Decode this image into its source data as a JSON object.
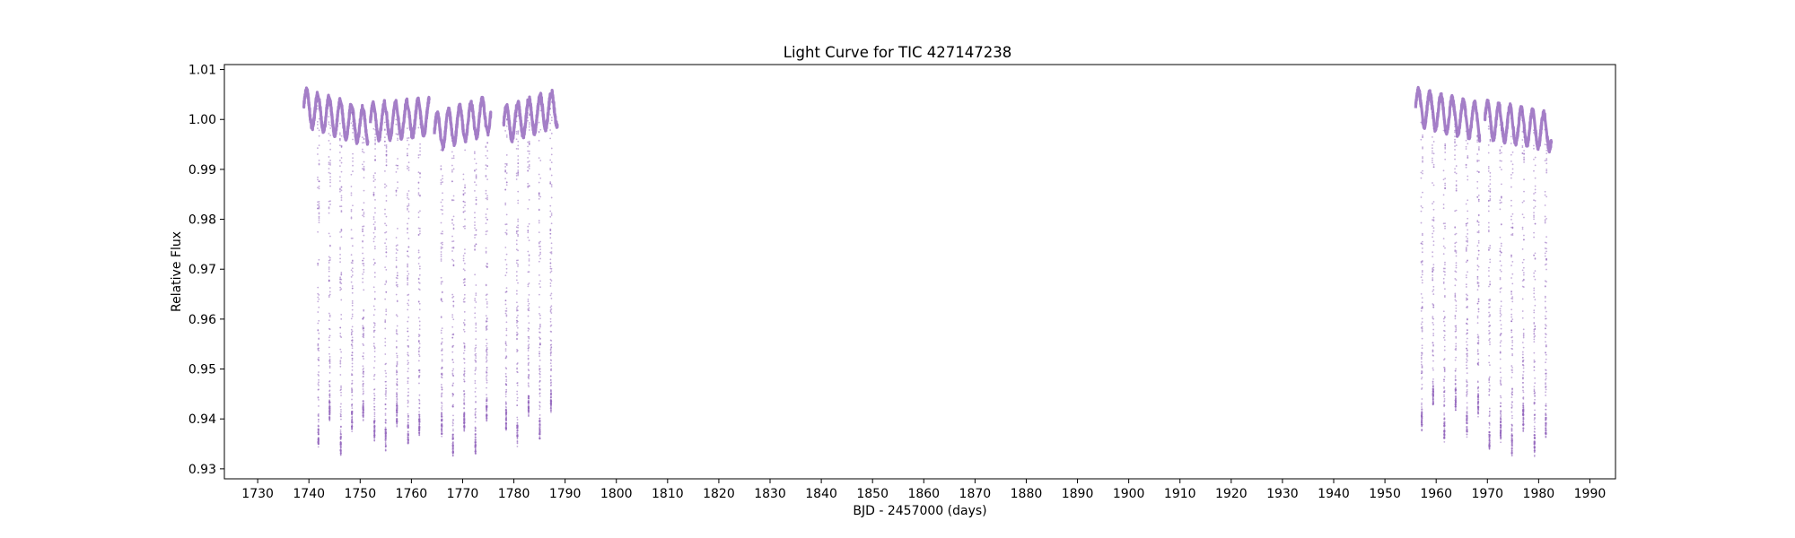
{
  "chart_data": {
    "type": "scatter",
    "title": "Light Curve for TIC 427147238",
    "xlabel": "BJD - 2457000 (days)",
    "ylabel": "Relative Flux",
    "xlim": [
      1723.5,
      1995.0
    ],
    "ylim": [
      0.928,
      1.011
    ],
    "xticks": [
      1730,
      1740,
      1750,
      1760,
      1770,
      1780,
      1790,
      1800,
      1810,
      1820,
      1830,
      1840,
      1850,
      1860,
      1870,
      1880,
      1890,
      1900,
      1910,
      1920,
      1930,
      1940,
      1950,
      1960,
      1970,
      1980,
      1990
    ],
    "xtick_labels": [
      "1730",
      "1740",
      "1750",
      "1760",
      "1770",
      "1780",
      "1790",
      "1800",
      "1810",
      "1820",
      "1830",
      "1840",
      "1850",
      "1860",
      "1870",
      "1880",
      "1890",
      "1900",
      "1910",
      "1920",
      "1930",
      "1940",
      "1950",
      "1960",
      "1970",
      "1980",
      "1990"
    ],
    "yticks": [
      0.93,
      0.94,
      0.95,
      0.96,
      0.97,
      0.98,
      0.99,
      1.0,
      1.01
    ],
    "ytick_labels": [
      "0.93",
      "0.94",
      "0.95",
      "0.96",
      "0.97",
      "0.98",
      "0.99",
      "1.00",
      "1.01"
    ],
    "grid": false,
    "series": [
      {
        "color": "#9467bd",
        "segments": [
          {
            "start": 1739.0,
            "end": 1751.5,
            "baseline_start": 1.0025,
            "baseline_end": 0.9985
          },
          {
            "start": 1752.0,
            "end": 1763.5,
            "baseline_start": 0.9995,
            "baseline_end": 1.0005
          },
          {
            "start": 1764.5,
            "end": 1775.5,
            "baseline_start": 0.9975,
            "baseline_end": 1.001
          },
          {
            "start": 1778.0,
            "end": 1788.5,
            "baseline_start": 0.999,
            "baseline_end": 1.0025
          },
          {
            "start": 1956.0,
            "end": 1968.5,
            "baseline_start": 1.0025,
            "baseline_end": 0.9995
          },
          {
            "start": 1969.5,
            "end": 1982.5,
            "baseline_start": 1.0,
            "baseline_end": 0.9975
          }
        ],
        "variability": {
          "period_days": 2.19,
          "amplitude": 0.0035
        },
        "eclipse_times": [
          1741.85,
          1744.04,
          1746.22,
          1748.41,
          1750.6,
          1752.79,
          1754.98,
          1757.17,
          1759.36,
          1761.55,
          1763.74,
          1765.93,
          1768.12,
          1770.31,
          1772.5,
          1774.69,
          1778.49,
          1780.68,
          1782.87,
          1785.06,
          1787.25,
          1957.2,
          1959.4,
          1961.6,
          1963.8,
          1966.0,
          1968.2,
          1970.4,
          1972.6,
          1974.8,
          1977.0,
          1979.2,
          1981.4
        ],
        "eclipse_minima": [
          0.935,
          0.94,
          0.933,
          0.938,
          0.94,
          0.936,
          0.934,
          0.939,
          0.935,
          0.937,
          0.935,
          0.937,
          0.933,
          0.938,
          0.933,
          0.94,
          0.938,
          0.935,
          0.941,
          0.936,
          0.942,
          0.938,
          0.943,
          0.936,
          0.942,
          0.937,
          0.941,
          0.934,
          0.936,
          0.933,
          0.938,
          0.933,
          0.937
        ],
        "eclipse_duration_days": 0.32
      }
    ]
  }
}
